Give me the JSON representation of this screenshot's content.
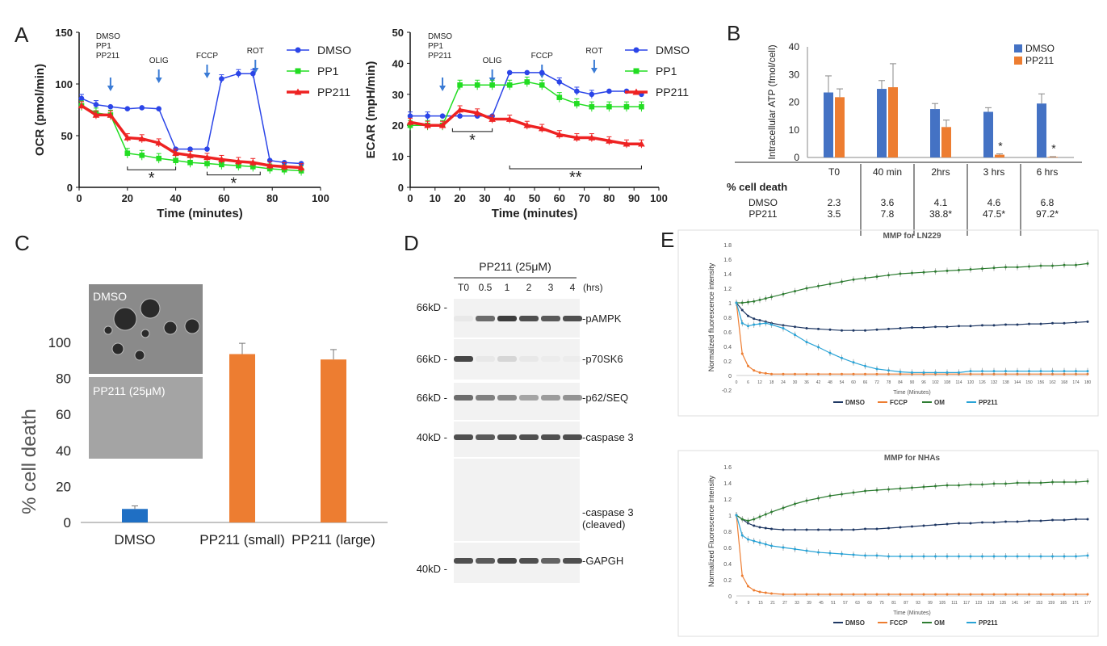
{
  "panels": {
    "A": "A",
    "B": "B",
    "C": "C",
    "D": "D",
    "E": "E"
  },
  "chart_data": [
    {
      "type": "line",
      "panel": "A-left",
      "xlabel": "Time (minutes)",
      "ylabel": "OCR (pmol/min)",
      "xlim": [
        0,
        100
      ],
      "ylim": [
        0,
        150
      ],
      "xticks": [
        "0",
        "20",
        "40",
        "60",
        "80",
        "100"
      ],
      "yticks": [
        "0",
        "50",
        "100",
        "150"
      ],
      "injections": [
        {
          "label": "DMSO\nPP1\nPP211",
          "x": 13
        },
        {
          "label": "OLIG",
          "x": 33
        },
        {
          "label": "FCCP",
          "x": 53
        },
        {
          "label": "ROT",
          "x": 73
        }
      ],
      "significance": [
        {
          "label": "*",
          "x1": 20,
          "x2": 40
        },
        {
          "label": "*",
          "x1": 53,
          "x2": 75
        }
      ],
      "x": [
        1,
        7,
        13,
        20,
        26,
        33,
        40,
        46,
        53,
        59,
        66,
        72,
        79,
        85,
        92
      ],
      "series": [
        {
          "name": "DMSO",
          "color": "#2b45e8",
          "values": [
            86,
            80,
            78,
            76,
            77,
            76,
            37,
            37,
            37,
            105,
            110,
            110,
            26,
            24,
            23
          ]
        },
        {
          "name": "PP1",
          "color": "#22dd22",
          "values": [
            79,
            72,
            70,
            33,
            31,
            28,
            26,
            24,
            23,
            22,
            21,
            20,
            18,
            17,
            16
          ]
        },
        {
          "name": "PP211",
          "color": "#ee2222",
          "values": [
            79,
            70,
            70,
            48,
            47,
            43,
            33,
            31,
            29,
            27,
            25,
            24,
            21,
            20,
            19
          ]
        }
      ]
    },
    {
      "type": "line",
      "panel": "A-right",
      "xlabel": "Time (minutes)",
      "ylabel": "ECAR (mpH/min)",
      "xlim": [
        0,
        100
      ],
      "ylim": [
        0,
        50
      ],
      "xticks": [
        "0",
        "10",
        "20",
        "30",
        "40",
        "50",
        "60",
        "70",
        "80",
        "90",
        "100"
      ],
      "yticks": [
        "0",
        "10",
        "20",
        "30",
        "40",
        "50"
      ],
      "injections": [
        {
          "label": "DMSO\nPP1\nPP211",
          "x": 13
        },
        {
          "label": "OLIG",
          "x": 33
        },
        {
          "label": "FCCP",
          "x": 53
        },
        {
          "label": "ROT",
          "x": 74
        }
      ],
      "significance": [
        {
          "label": "*",
          "x1": 17,
          "x2": 33
        },
        {
          "label": "**",
          "x1": 40,
          "x2": 93
        }
      ],
      "x": [
        0,
        7,
        13,
        20,
        27,
        33,
        40,
        47,
        53,
        60,
        67,
        73,
        80,
        87,
        93
      ],
      "series": [
        {
          "name": "DMSO",
          "color": "#2b45e8",
          "values": [
            23,
            23,
            23,
            23,
            23,
            23,
            37,
            37,
            37,
            34,
            31,
            30,
            31,
            31,
            30
          ]
        },
        {
          "name": "PP1",
          "color": "#22dd22",
          "values": [
            20,
            20,
            20,
            33,
            33,
            33,
            33,
            34,
            33,
            29,
            27,
            26,
            26,
            26,
            26
          ]
        },
        {
          "name": "PP211",
          "color": "#ee2222",
          "values": [
            21,
            20,
            20,
            25,
            24,
            22,
            22,
            20,
            19,
            17,
            16,
            16,
            15,
            14,
            14
          ]
        }
      ]
    },
    {
      "type": "bar",
      "panel": "B",
      "ylabel": "Intracellular ATP (fmol/cell)",
      "ylim": [
        0,
        40
      ],
      "yticks": [
        "0",
        "10",
        "20",
        "30",
        "40"
      ],
      "categories": [
        "T0",
        "40 min",
        "2hrs",
        "3 hrs",
        "6 hrs"
      ],
      "series": [
        {
          "name": "DMSO",
          "color": "#4472c4",
          "values": [
            23.5,
            24.8,
            17.5,
            16.5,
            19.5
          ]
        },
        {
          "name": "PP211",
          "color": "#ed7d31",
          "values": [
            21.8,
            25.4,
            11,
            1,
            0.2
          ]
        }
      ],
      "star_marks": [
        "",
        "",
        "",
        "*",
        "*"
      ],
      "table": {
        "title": "% cell death",
        "rows": [
          {
            "name": "DMSO",
            "values": [
              "2.3",
              "3.6",
              "4.1",
              "4.6",
              "6.8"
            ]
          },
          {
            "name": "PP211",
            "values": [
              "3.5",
              "7.8",
              "38.8*",
              "47.5*",
              "97.2*"
            ]
          }
        ]
      }
    },
    {
      "type": "bar",
      "panel": "C",
      "ylabel": "% cell death",
      "ylim": [
        0,
        100
      ],
      "yticks": [
        "0",
        "20",
        "40",
        "60",
        "80",
        "100"
      ],
      "categories": [
        "DMSO",
        "PP211 (small)",
        "PP211 (large)"
      ],
      "values": [
        7.5,
        93.5,
        90.5
      ],
      "colors": [
        "#1f6fc4",
        "#ed7d31",
        "#ed7d31"
      ],
      "inset_labels": [
        "DMSO",
        "PP211 (25μM)"
      ]
    },
    {
      "type": "line",
      "panel": "E-top",
      "title": "MMP for LN229",
      "xlabel": "Time (Minutes)",
      "ylabel": "Normalized fluorescence intensity",
      "xlim": [
        0,
        180
      ],
      "ylim": [
        -0.2,
        1.8
      ],
      "yticks": [
        "-0.2",
        "0",
        "0.2",
        "0.4",
        "0.6",
        "0.8",
        "1",
        "1.2",
        "1.4",
        "1.6",
        "1.8"
      ],
      "xticks": [
        "0",
        "6",
        "12",
        "18",
        "24",
        "30",
        "36",
        "42",
        "48",
        "54",
        "60",
        "66",
        "72",
        "78",
        "84",
        "90",
        "96",
        "102",
        "108",
        "114",
        "120",
        "126",
        "132",
        "138",
        "144",
        "150",
        "156",
        "162",
        "168",
        "174",
        "180"
      ],
      "x": [
        0,
        3,
        6,
        9,
        12,
        15,
        18,
        24,
        30,
        36,
        42,
        48,
        54,
        60,
        66,
        72,
        78,
        84,
        90,
        96,
        102,
        108,
        114,
        120,
        126,
        132,
        138,
        144,
        150,
        156,
        162,
        168,
        174,
        180
      ],
      "series": [
        {
          "name": "DMSO",
          "color": "#1f3864",
          "values": [
            1,
            0.9,
            0.82,
            0.78,
            0.76,
            0.74,
            0.72,
            0.69,
            0.67,
            0.65,
            0.64,
            0.63,
            0.62,
            0.62,
            0.62,
            0.63,
            0.64,
            0.65,
            0.66,
            0.66,
            0.67,
            0.67,
            0.68,
            0.68,
            0.69,
            0.69,
            0.7,
            0.7,
            0.71,
            0.71,
            0.72,
            0.72,
            0.73,
            0.74
          ]
        },
        {
          "name": "FCCP",
          "color": "#ed7d31",
          "values": [
            1,
            0.3,
            0.13,
            0.07,
            0.04,
            0.03,
            0.02,
            0.02,
            0.02,
            0.02,
            0.02,
            0.02,
            0.02,
            0.02,
            0.02,
            0.02,
            0.02,
            0.02,
            0.02,
            0.02,
            0.02,
            0.02,
            0.02,
            0.02,
            0.02,
            0.02,
            0.02,
            0.02,
            0.02,
            0.02,
            0.02,
            0.02,
            0.02,
            0.02
          ]
        },
        {
          "name": "OM",
          "color": "#2e7d32",
          "values": [
            1,
            1,
            1.01,
            1.02,
            1.04,
            1.06,
            1.08,
            1.12,
            1.16,
            1.2,
            1.23,
            1.26,
            1.29,
            1.32,
            1.34,
            1.36,
            1.38,
            1.4,
            1.41,
            1.42,
            1.43,
            1.44,
            1.45,
            1.46,
            1.47,
            1.48,
            1.49,
            1.49,
            1.5,
            1.51,
            1.51,
            1.52,
            1.52,
            1.54
          ]
        },
        {
          "name": "PP211",
          "color": "#29a3d6",
          "values": [
            1,
            0.72,
            0.68,
            0.7,
            0.71,
            0.72,
            0.7,
            0.65,
            0.56,
            0.46,
            0.39,
            0.31,
            0.24,
            0.18,
            0.13,
            0.09,
            0.07,
            0.05,
            0.04,
            0.04,
            0.04,
            0.04,
            0.04,
            0.06,
            0.06,
            0.06,
            0.06,
            0.06,
            0.06,
            0.06,
            0.06,
            0.06,
            0.06,
            0.06
          ]
        }
      ],
      "legend": [
        "DMSO",
        "FCCP",
        "OM",
        "PP211"
      ]
    },
    {
      "type": "line",
      "panel": "E-bottom",
      "title": "MMP for NHAs",
      "xlabel": "Time (Minutes)",
      "ylabel": "Normalized Fluorescence Intensity",
      "xlim": [
        0,
        180
      ],
      "ylim": [
        0,
        1.6
      ],
      "yticks": [
        "0",
        "0.2",
        "0.4",
        "0.6",
        "0.8",
        "1",
        "1.2",
        "1.4",
        "1.6"
      ],
      "xticks": [
        "0",
        "9",
        "15",
        "21",
        "27",
        "33",
        "39",
        "45",
        "51",
        "57",
        "63",
        "69",
        "75",
        "81",
        "87",
        "93",
        "99",
        "105",
        "111",
        "117",
        "123",
        "129",
        "135",
        "141",
        "147",
        "153",
        "159",
        "165",
        "171",
        "177"
      ],
      "x": [
        0,
        3,
        6,
        9,
        12,
        15,
        18,
        24,
        30,
        36,
        42,
        48,
        54,
        60,
        66,
        72,
        78,
        84,
        90,
        96,
        102,
        108,
        114,
        120,
        126,
        132,
        138,
        144,
        150,
        156,
        162,
        168,
        174,
        180
      ],
      "series": [
        {
          "name": "DMSO",
          "color": "#1f3864",
          "values": [
            1,
            0.95,
            0.9,
            0.87,
            0.85,
            0.84,
            0.83,
            0.82,
            0.82,
            0.82,
            0.82,
            0.82,
            0.82,
            0.82,
            0.83,
            0.83,
            0.84,
            0.85,
            0.86,
            0.87,
            0.88,
            0.89,
            0.9,
            0.9,
            0.91,
            0.91,
            0.92,
            0.92,
            0.93,
            0.93,
            0.94,
            0.94,
            0.95,
            0.95
          ]
        },
        {
          "name": "FCCP",
          "color": "#ed7d31",
          "values": [
            1,
            0.25,
            0.12,
            0.07,
            0.05,
            0.04,
            0.03,
            0.02,
            0.02,
            0.02,
            0.02,
            0.02,
            0.02,
            0.02,
            0.02,
            0.02,
            0.02,
            0.02,
            0.02,
            0.02,
            0.02,
            0.02,
            0.02,
            0.02,
            0.02,
            0.02,
            0.02,
            0.02,
            0.02,
            0.02,
            0.02,
            0.02,
            0.02,
            0.02
          ]
        },
        {
          "name": "OM",
          "color": "#2e7d32",
          "values": [
            1,
            0.95,
            0.93,
            0.95,
            0.98,
            1.01,
            1.04,
            1.09,
            1.14,
            1.18,
            1.21,
            1.24,
            1.26,
            1.28,
            1.3,
            1.31,
            1.32,
            1.33,
            1.34,
            1.35,
            1.36,
            1.37,
            1.37,
            1.38,
            1.38,
            1.39,
            1.39,
            1.4,
            1.4,
            1.4,
            1.41,
            1.41,
            1.41,
            1.42
          ]
        },
        {
          "name": "PP211",
          "color": "#29a3d6",
          "values": [
            1,
            0.75,
            0.7,
            0.68,
            0.66,
            0.64,
            0.62,
            0.6,
            0.58,
            0.56,
            0.54,
            0.53,
            0.52,
            0.51,
            0.5,
            0.5,
            0.49,
            0.49,
            0.49,
            0.49,
            0.49,
            0.49,
            0.49,
            0.49,
            0.49,
            0.49,
            0.49,
            0.49,
            0.49,
            0.49,
            0.49,
            0.49,
            0.49,
            0.5
          ]
        }
      ],
      "legend": [
        "DMSO",
        "FCCP",
        "OM",
        "PP211"
      ]
    }
  ],
  "blot": {
    "treatment": "PP211 (25μM)",
    "unit": "(hrs)",
    "lanes": [
      "T0",
      "0.5",
      "1",
      "2",
      "3",
      "4"
    ],
    "rows": [
      {
        "marker": "66kD -",
        "label": "-pAMPK",
        "intensity": [
          0.05,
          0.7,
          0.95,
          0.85,
          0.8,
          0.85
        ]
      },
      {
        "marker": "66kD -",
        "label": "-p70SK6",
        "intensity": [
          0.9,
          0.05,
          0.15,
          0.05,
          0.03,
          0.03
        ]
      },
      {
        "marker": "66kD -",
        "label": "-p62/SEQ",
        "intensity": [
          0.7,
          0.6,
          0.55,
          0.4,
          0.45,
          0.5
        ]
      },
      {
        "marker": "40kD -",
        "label": "-caspase 3",
        "intensity": [
          0.85,
          0.8,
          0.85,
          0.85,
          0.85,
          0.85
        ]
      },
      {
        "marker": "",
        "label": "-caspase 3\n(cleaved)",
        "intensity": [
          0,
          0,
          0,
          0,
          0,
          0
        ]
      },
      {
        "marker": "40kD -",
        "label": "-GAPGH",
        "intensity": [
          0.85,
          0.8,
          0.9,
          0.85,
          0.75,
          0.85
        ]
      }
    ]
  }
}
